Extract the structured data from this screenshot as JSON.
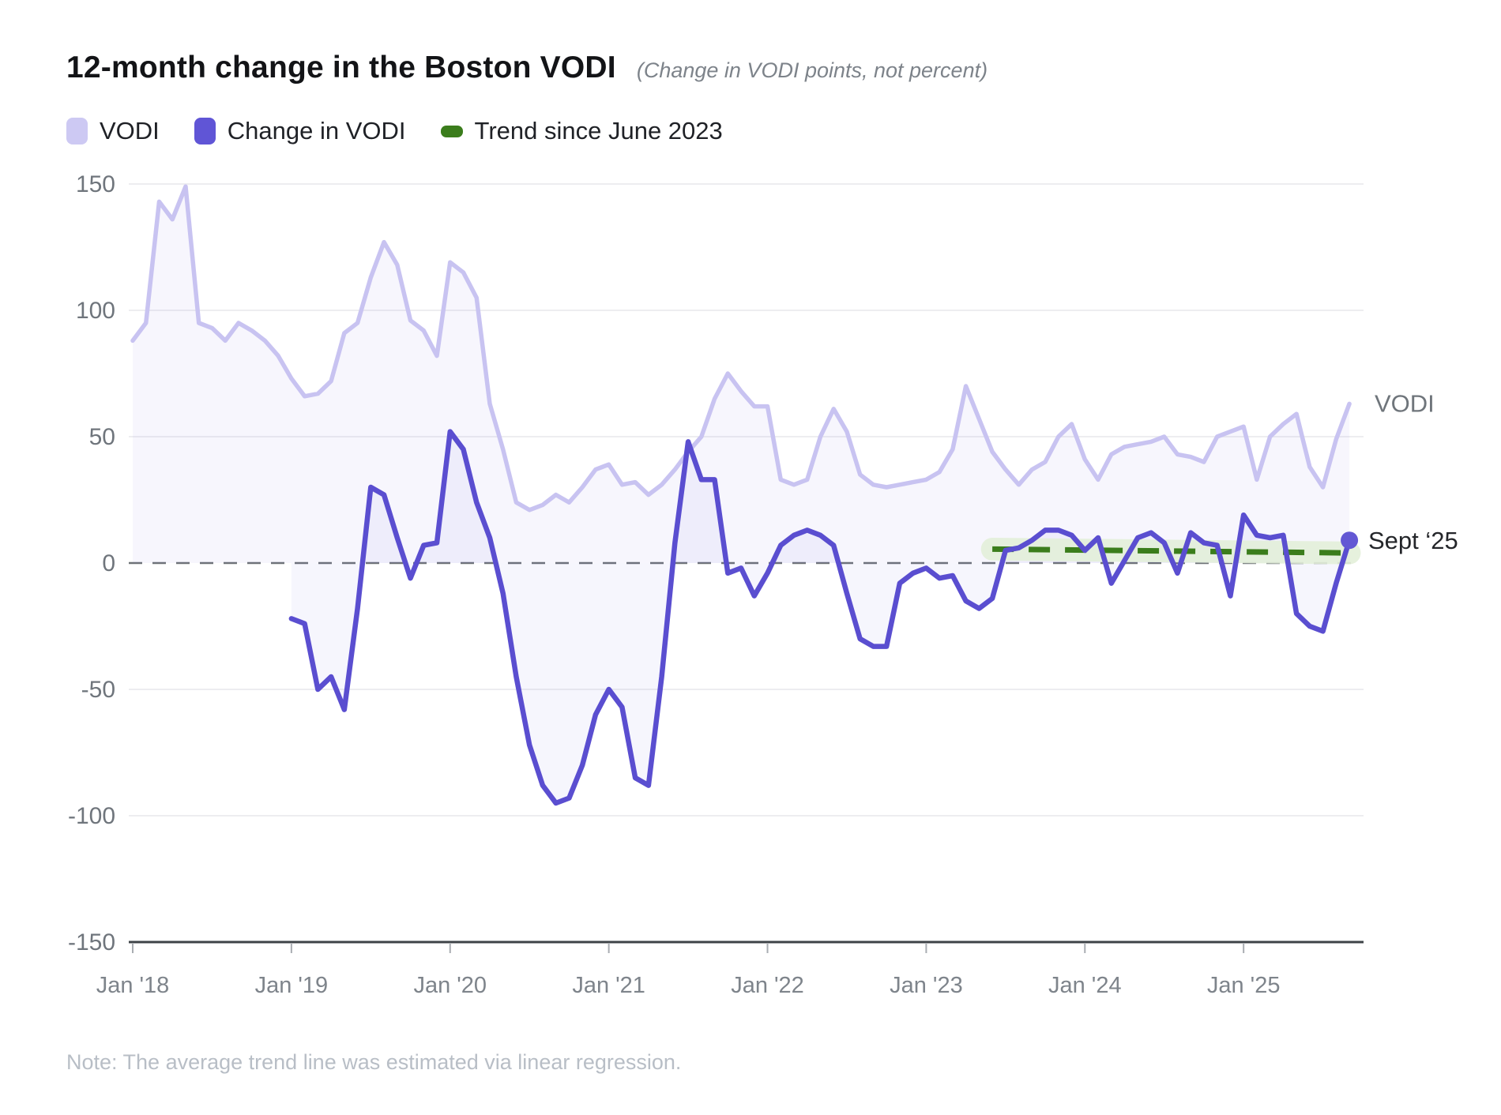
{
  "header": {
    "title": "12-month change in the Boston VODI",
    "subtitle": "(Change in VODI points, not percent)"
  },
  "legend": [
    {
      "label": "VODI",
      "color": "#cdc9f3",
      "shape": "square"
    },
    {
      "label": "Change in VODI",
      "color": "#6055d6",
      "shape": "square"
    },
    {
      "label": "Trend since June 2023",
      "color": "#3b7d1c",
      "shape": "pill"
    }
  ],
  "note": "Note: The average trend line was estimated via linear regression.",
  "annotations": [
    {
      "text": "VODI",
      "color": "#6f757b"
    },
    {
      "text": "Sept ‘25",
      "color": "#24262a"
    }
  ],
  "chart_data": {
    "type": "line",
    "title": "12-month change in the Boston VODI",
    "x_tick_labels": [
      "Jan '18",
      "Jan '19",
      "Jan '20",
      "Jan '21",
      "Jan '22",
      "Jan '23",
      "Jan '24",
      "Jan '25"
    ],
    "x_tick_month_indices": [
      0,
      12,
      24,
      36,
      48,
      60,
      72,
      84
    ],
    "months_span": "Jan 2018 - Sep 2025",
    "ylim": [
      -150,
      150
    ],
    "y_ticks": [
      150,
      100,
      50,
      0,
      -50,
      -100,
      -150
    ],
    "grid": true,
    "zero_line_dashed": true,
    "series": [
      {
        "name": "VODI",
        "color": "#c8c3f1",
        "start_month_index": 0,
        "values": [
          88,
          95,
          143,
          136,
          149,
          95,
          93,
          88,
          95,
          92,
          88,
          82,
          73,
          66,
          67,
          72,
          91,
          95,
          113,
          127,
          118,
          96,
          92,
          82,
          119,
          115,
          105,
          63,
          45,
          24,
          21,
          23,
          27,
          24,
          30,
          37,
          39,
          31,
          32,
          27,
          31,
          37,
          44,
          50,
          65,
          75,
          68,
          62,
          62,
          33,
          31,
          33,
          50,
          61,
          52,
          35,
          31,
          30,
          31,
          32,
          33,
          36,
          45,
          70,
          57,
          44,
          37,
          31,
          37,
          40,
          50,
          55,
          41,
          33,
          43,
          46,
          47,
          48,
          50,
          43,
          42,
          40,
          50,
          52,
          54,
          33,
          50,
          55,
          59,
          38,
          30,
          49,
          63
        ]
      },
      {
        "name": "Change in VODI",
        "color": "#5a4ed0",
        "start_month_index": 12,
        "values": [
          -22,
          -24,
          -50,
          -45,
          -58,
          -18,
          30,
          27,
          10,
          -6,
          7,
          8,
          52,
          45,
          24,
          10,
          -12,
          -45,
          -72,
          -88,
          -95,
          -93,
          -80,
          -60,
          -50,
          -57,
          -85,
          -88,
          -45,
          8,
          48,
          33,
          33,
          -4,
          -2,
          -13,
          -4,
          7,
          11,
          13,
          11,
          7,
          -12,
          -30,
          -33,
          -33,
          -8,
          -4,
          -2,
          -6,
          -5,
          -15,
          -18,
          -14,
          5,
          6,
          9,
          13,
          13,
          11,
          5,
          10,
          -8,
          1,
          10,
          12,
          8,
          -4,
          12,
          8,
          7,
          -13,
          19,
          11,
          10,
          11,
          -20,
          -25,
          -27,
          -8,
          9
        ]
      },
      {
        "name": "Trend since June 2023",
        "style": "dashed",
        "color": "#3b7d1c",
        "band_color": "#e4f0da",
        "start_month_index": 65,
        "end_month_index": 92,
        "start_value": 5.5,
        "end_value": 4.0,
        "band_halfwidth": 4.5
      }
    ],
    "end_dot": {
      "series": "Change in VODI",
      "month_index": 92,
      "value": 9,
      "label": "Sept ‘25",
      "color": "#6358d4"
    },
    "last_point_annotation_vodi": {
      "month_index": 92,
      "value": 63,
      "label": "VODI"
    }
  }
}
